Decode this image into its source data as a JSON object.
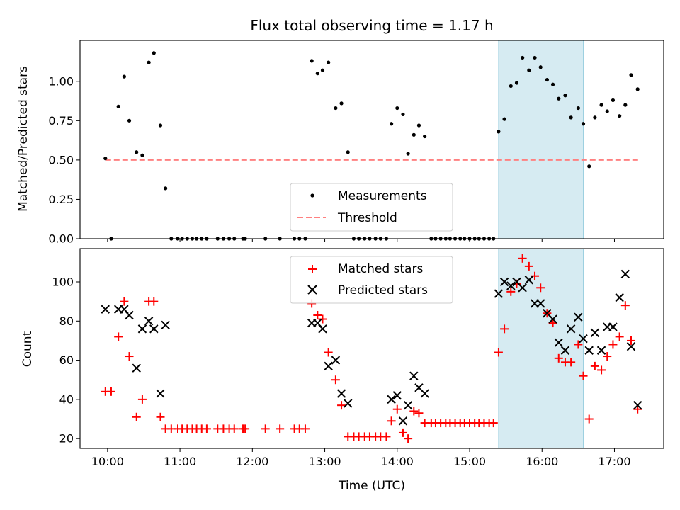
{
  "chart_data": [
    {
      "type": "scatter",
      "title": "Flux total observing time = 1.17 h",
      "xlabel": "",
      "ylabel": "Matched/Predicted stars",
      "xlim": [
        9.62,
        17.68
      ],
      "ylim": [
        0.0,
        1.26
      ],
      "yticks": [
        0.0,
        0.25,
        0.5,
        0.75,
        1.0
      ],
      "ytick_labels": [
        "0.00",
        "0.25",
        "0.50",
        "0.75",
        "1.00"
      ],
      "highlight_span": [
        15.4,
        16.57
      ],
      "threshold": {
        "name": "Threshold",
        "value": 0.5,
        "x_range": [
          9.97,
          17.33
        ],
        "color": "#ff8080"
      },
      "legend_position": "lower center",
      "series": [
        {
          "name": "Measurements",
          "marker": "dot",
          "color": "#000000",
          "points": [
            [
              9.97,
              0.51
            ],
            [
              10.05,
              0.0
            ],
            [
              10.15,
              0.84
            ],
            [
              10.23,
              1.03
            ],
            [
              10.3,
              0.75
            ],
            [
              10.4,
              0.55
            ],
            [
              10.48,
              0.53
            ],
            [
              10.57,
              1.12
            ],
            [
              10.64,
              1.18
            ],
            [
              10.73,
              0.72
            ],
            [
              10.8,
              0.32
            ],
            [
              10.88,
              0.0
            ],
            [
              10.97,
              0.0
            ],
            [
              11.03,
              0.0
            ],
            [
              11.1,
              0.0
            ],
            [
              11.17,
              0.0
            ],
            [
              11.23,
              0.0
            ],
            [
              11.3,
              0.0
            ],
            [
              11.37,
              0.0
            ],
            [
              11.52,
              0.0
            ],
            [
              11.6,
              0.0
            ],
            [
              11.68,
              0.0
            ],
            [
              11.75,
              0.0
            ],
            [
              11.87,
              0.0
            ],
            [
              11.9,
              0.0
            ],
            [
              12.18,
              0.0
            ],
            [
              12.38,
              0.0
            ],
            [
              12.58,
              0.0
            ],
            [
              12.65,
              0.0
            ],
            [
              12.73,
              0.0
            ],
            [
              12.82,
              1.13
            ],
            [
              12.9,
              1.05
            ],
            [
              12.97,
              1.07
            ],
            [
              13.05,
              1.12
            ],
            [
              13.15,
              0.83
            ],
            [
              13.23,
              0.86
            ],
            [
              13.32,
              0.55
            ],
            [
              13.4,
              0.0
            ],
            [
              13.47,
              0.0
            ],
            [
              13.55,
              0.0
            ],
            [
              13.62,
              0.0
            ],
            [
              13.7,
              0.0
            ],
            [
              13.77,
              0.0
            ],
            [
              13.85,
              0.0
            ],
            [
              13.92,
              0.73
            ],
            [
              14.0,
              0.83
            ],
            [
              14.08,
              0.79
            ],
            [
              14.15,
              0.54
            ],
            [
              14.23,
              0.66
            ],
            [
              14.3,
              0.72
            ],
            [
              14.38,
              0.65
            ],
            [
              14.47,
              0.0
            ],
            [
              14.53,
              0.0
            ],
            [
              14.6,
              0.0
            ],
            [
              14.67,
              0.0
            ],
            [
              14.73,
              0.0
            ],
            [
              14.8,
              0.0
            ],
            [
              14.87,
              0.0
            ],
            [
              14.93,
              0.0
            ],
            [
              15.0,
              0.0
            ],
            [
              15.07,
              0.0
            ],
            [
              15.13,
              0.0
            ],
            [
              15.2,
              0.0
            ],
            [
              15.27,
              0.0
            ],
            [
              15.33,
              0.0
            ],
            [
              15.4,
              0.68
            ],
            [
              15.48,
              0.76
            ],
            [
              15.57,
              0.97
            ],
            [
              15.65,
              0.99
            ],
            [
              15.73,
              1.15
            ],
            [
              15.82,
              1.07
            ],
            [
              15.9,
              1.15
            ],
            [
              15.98,
              1.09
            ],
            [
              16.07,
              1.01
            ],
            [
              16.15,
              0.98
            ],
            [
              16.23,
              0.89
            ],
            [
              16.32,
              0.91
            ],
            [
              16.4,
              0.77
            ],
            [
              16.5,
              0.83
            ],
            [
              16.57,
              0.73
            ],
            [
              16.65,
              0.46
            ],
            [
              16.73,
              0.77
            ],
            [
              16.82,
              0.85
            ],
            [
              16.9,
              0.81
            ],
            [
              16.98,
              0.88
            ],
            [
              17.07,
              0.78
            ],
            [
              17.15,
              0.85
            ],
            [
              17.23,
              1.04
            ],
            [
              17.32,
              0.95
            ]
          ]
        }
      ]
    },
    {
      "type": "scatter",
      "title": "",
      "xlabel": "Time (UTC)",
      "ylabel": "Count",
      "xlim": [
        9.62,
        17.68
      ],
      "ylim": [
        15,
        117
      ],
      "yticks": [
        20,
        40,
        60,
        80,
        100
      ],
      "ytick_labels": [
        "20",
        "40",
        "60",
        "80",
        "100"
      ],
      "xticks": [
        10,
        11,
        12,
        13,
        14,
        15,
        16,
        17
      ],
      "xtick_labels": [
        "10:00",
        "11:00",
        "12:00",
        "13:00",
        "14:00",
        "15:00",
        "16:00",
        "17:00"
      ],
      "highlight_span": [
        15.4,
        16.57
      ],
      "legend_position": "upper center",
      "series": [
        {
          "name": "Matched stars",
          "marker": "plus",
          "color": "#ff0000",
          "points": [
            [
              9.97,
              44
            ],
            [
              10.05,
              44
            ],
            [
              10.15,
              72
            ],
            [
              10.23,
              90
            ],
            [
              10.3,
              62
            ],
            [
              10.4,
              31
            ],
            [
              10.48,
              40
            ],
            [
              10.57,
              90
            ],
            [
              10.64,
              90
            ],
            [
              10.73,
              31
            ],
            [
              10.8,
              25
            ],
            [
              10.88,
              25
            ],
            [
              10.97,
              25
            ],
            [
              11.03,
              25
            ],
            [
              11.1,
              25
            ],
            [
              11.17,
              25
            ],
            [
              11.23,
              25
            ],
            [
              11.3,
              25
            ],
            [
              11.37,
              25
            ],
            [
              11.52,
              25
            ],
            [
              11.6,
              25
            ],
            [
              11.68,
              25
            ],
            [
              11.75,
              25
            ],
            [
              11.87,
              25
            ],
            [
              11.9,
              25
            ],
            [
              12.18,
              25
            ],
            [
              12.38,
              25
            ],
            [
              12.58,
              25
            ],
            [
              12.65,
              25
            ],
            [
              12.73,
              25
            ],
            [
              12.82,
              89
            ],
            [
              12.9,
              83
            ],
            [
              12.97,
              81
            ],
            [
              13.05,
              64
            ],
            [
              13.15,
              50
            ],
            [
              13.23,
              37
            ],
            [
              13.32,
              21
            ],
            [
              13.4,
              21
            ],
            [
              13.47,
              21
            ],
            [
              13.55,
              21
            ],
            [
              13.62,
              21
            ],
            [
              13.7,
              21
            ],
            [
              13.77,
              21
            ],
            [
              13.85,
              21
            ],
            [
              13.92,
              29
            ],
            [
              14.0,
              35
            ],
            [
              14.08,
              23
            ],
            [
              14.15,
              20
            ],
            [
              14.23,
              34
            ],
            [
              14.3,
              33
            ],
            [
              14.38,
              28
            ],
            [
              14.47,
              28
            ],
            [
              14.53,
              28
            ],
            [
              14.6,
              28
            ],
            [
              14.67,
              28
            ],
            [
              14.73,
              28
            ],
            [
              14.8,
              28
            ],
            [
              14.87,
              28
            ],
            [
              14.93,
              28
            ],
            [
              15.0,
              28
            ],
            [
              15.07,
              28
            ],
            [
              15.13,
              28
            ],
            [
              15.2,
              28
            ],
            [
              15.27,
              28
            ],
            [
              15.33,
              28
            ],
            [
              15.4,
              64
            ],
            [
              15.48,
              76
            ],
            [
              15.57,
              95
            ],
            [
              15.65,
              99
            ],
            [
              15.73,
              112
            ],
            [
              15.82,
              108
            ],
            [
              15.9,
              103
            ],
            [
              15.98,
              97
            ],
            [
              16.07,
              84
            ],
            [
              16.15,
              79
            ],
            [
              16.23,
              61
            ],
            [
              16.32,
              59
            ],
            [
              16.4,
              59
            ],
            [
              16.5,
              68
            ],
            [
              16.57,
              52
            ],
            [
              16.65,
              30
            ],
            [
              16.73,
              57
            ],
            [
              16.82,
              55
            ],
            [
              16.9,
              62
            ],
            [
              16.98,
              68
            ],
            [
              17.07,
              72
            ],
            [
              17.15,
              88
            ],
            [
              17.23,
              70
            ],
            [
              17.32,
              35
            ]
          ]
        },
        {
          "name": "Predicted stars",
          "marker": "x",
          "color": "#000000",
          "points": [
            [
              9.97,
              86
            ],
            [
              10.15,
              86
            ],
            [
              10.23,
              86
            ],
            [
              10.3,
              83
            ],
            [
              10.4,
              56
            ],
            [
              10.48,
              76
            ],
            [
              10.57,
              80
            ],
            [
              10.64,
              76
            ],
            [
              10.73,
              43
            ],
            [
              10.8,
              78
            ],
            [
              12.82,
              79
            ],
            [
              12.9,
              79
            ],
            [
              12.97,
              76
            ],
            [
              13.05,
              57
            ],
            [
              13.15,
              60
            ],
            [
              13.23,
              43
            ],
            [
              13.32,
              38
            ],
            [
              13.92,
              40
            ],
            [
              14.0,
              42
            ],
            [
              14.08,
              29
            ],
            [
              14.15,
              37
            ],
            [
              14.23,
              52
            ],
            [
              14.3,
              46
            ],
            [
              14.38,
              43
            ],
            [
              15.4,
              94
            ],
            [
              15.48,
              100
            ],
            [
              15.57,
              98
            ],
            [
              15.65,
              100
            ],
            [
              15.73,
              97
            ],
            [
              15.82,
              101
            ],
            [
              15.9,
              89
            ],
            [
              15.98,
              89
            ],
            [
              16.07,
              84
            ],
            [
              16.15,
              81
            ],
            [
              16.23,
              69
            ],
            [
              16.32,
              65
            ],
            [
              16.4,
              76
            ],
            [
              16.5,
              82
            ],
            [
              16.57,
              71
            ],
            [
              16.65,
              65
            ],
            [
              16.73,
              74
            ],
            [
              16.82,
              65
            ],
            [
              16.9,
              77
            ],
            [
              16.98,
              77
            ],
            [
              17.07,
              92
            ],
            [
              17.15,
              104
            ],
            [
              17.23,
              67
            ],
            [
              17.32,
              37
            ]
          ]
        }
      ]
    }
  ]
}
